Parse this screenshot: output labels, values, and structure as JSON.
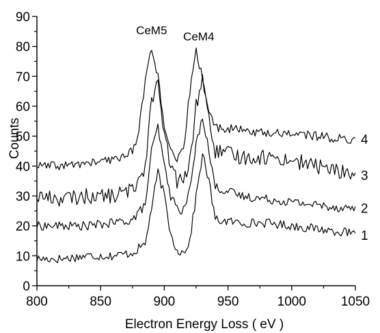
{
  "chart_data": {
    "type": "line",
    "title": "",
    "xlabel": "Electron Energy Loss ( eV )",
    "ylabel": "Counts",
    "xlim": [
      800,
      1050
    ],
    "ylim": [
      0,
      90
    ],
    "x_ticks": [
      800,
      850,
      900,
      950,
      1000,
      1050
    ],
    "y_ticks": [
      0,
      10,
      20,
      30,
      40,
      50,
      60,
      70,
      80,
      90
    ],
    "grid": false,
    "legend": "none",
    "line_color": "#000000",
    "annotations": [
      {
        "text": "CeM5",
        "x": 890,
        "y": 84
      },
      {
        "text": "CeM4",
        "x": 927,
        "y": 82
      }
    ],
    "series": [
      {
        "name": "1",
        "x": [
          800,
          820,
          840,
          860,
          875,
          885,
          890,
          895,
          900,
          905,
          910,
          915,
          920,
          925,
          930,
          935,
          940,
          960,
          980,
          1000,
          1020,
          1040,
          1050
        ],
        "y": [
          9,
          9,
          10,
          10,
          11,
          14,
          26,
          38,
          30,
          17,
          12,
          11,
          15,
          30,
          44,
          35,
          22,
          21,
          21,
          20,
          19,
          18,
          17
        ]
      },
      {
        "name": "2",
        "x": [
          800,
          820,
          840,
          860,
          875,
          885,
          890,
          895,
          900,
          905,
          910,
          915,
          920,
          925,
          930,
          935,
          940,
          960,
          980,
          1000,
          1020,
          1040,
          1050
        ],
        "y": [
          20,
          20,
          20,
          21,
          22,
          27,
          45,
          53,
          40,
          30,
          26,
          25,
          32,
          47,
          57,
          45,
          33,
          30,
          29,
          28,
          27,
          26,
          26
        ]
      },
      {
        "name": "3",
        "x": [
          800,
          820,
          840,
          860,
          875,
          885,
          890,
          895,
          900,
          905,
          910,
          915,
          920,
          925,
          930,
          935,
          940,
          960,
          980,
          1000,
          1020,
          1040,
          1050
        ],
        "y": [
          30,
          29,
          30,
          30,
          32,
          40,
          63,
          67,
          50,
          40,
          35,
          35,
          41,
          60,
          70,
          55,
          45,
          43,
          43,
          42,
          40,
          38,
          37
        ]
      },
      {
        "name": "4",
        "x": [
          800,
          820,
          840,
          860,
          875,
          880,
          885,
          890,
          895,
          900,
          905,
          910,
          915,
          920,
          925,
          930,
          935,
          940,
          960,
          980,
          1000,
          1020,
          1040,
          1050
        ],
        "y": [
          40,
          40,
          41,
          42,
          45,
          52,
          68,
          80,
          70,
          52,
          45,
          42,
          45,
          65,
          78,
          70,
          58,
          53,
          52,
          51,
          51,
          50,
          49,
          49
        ]
      }
    ]
  }
}
